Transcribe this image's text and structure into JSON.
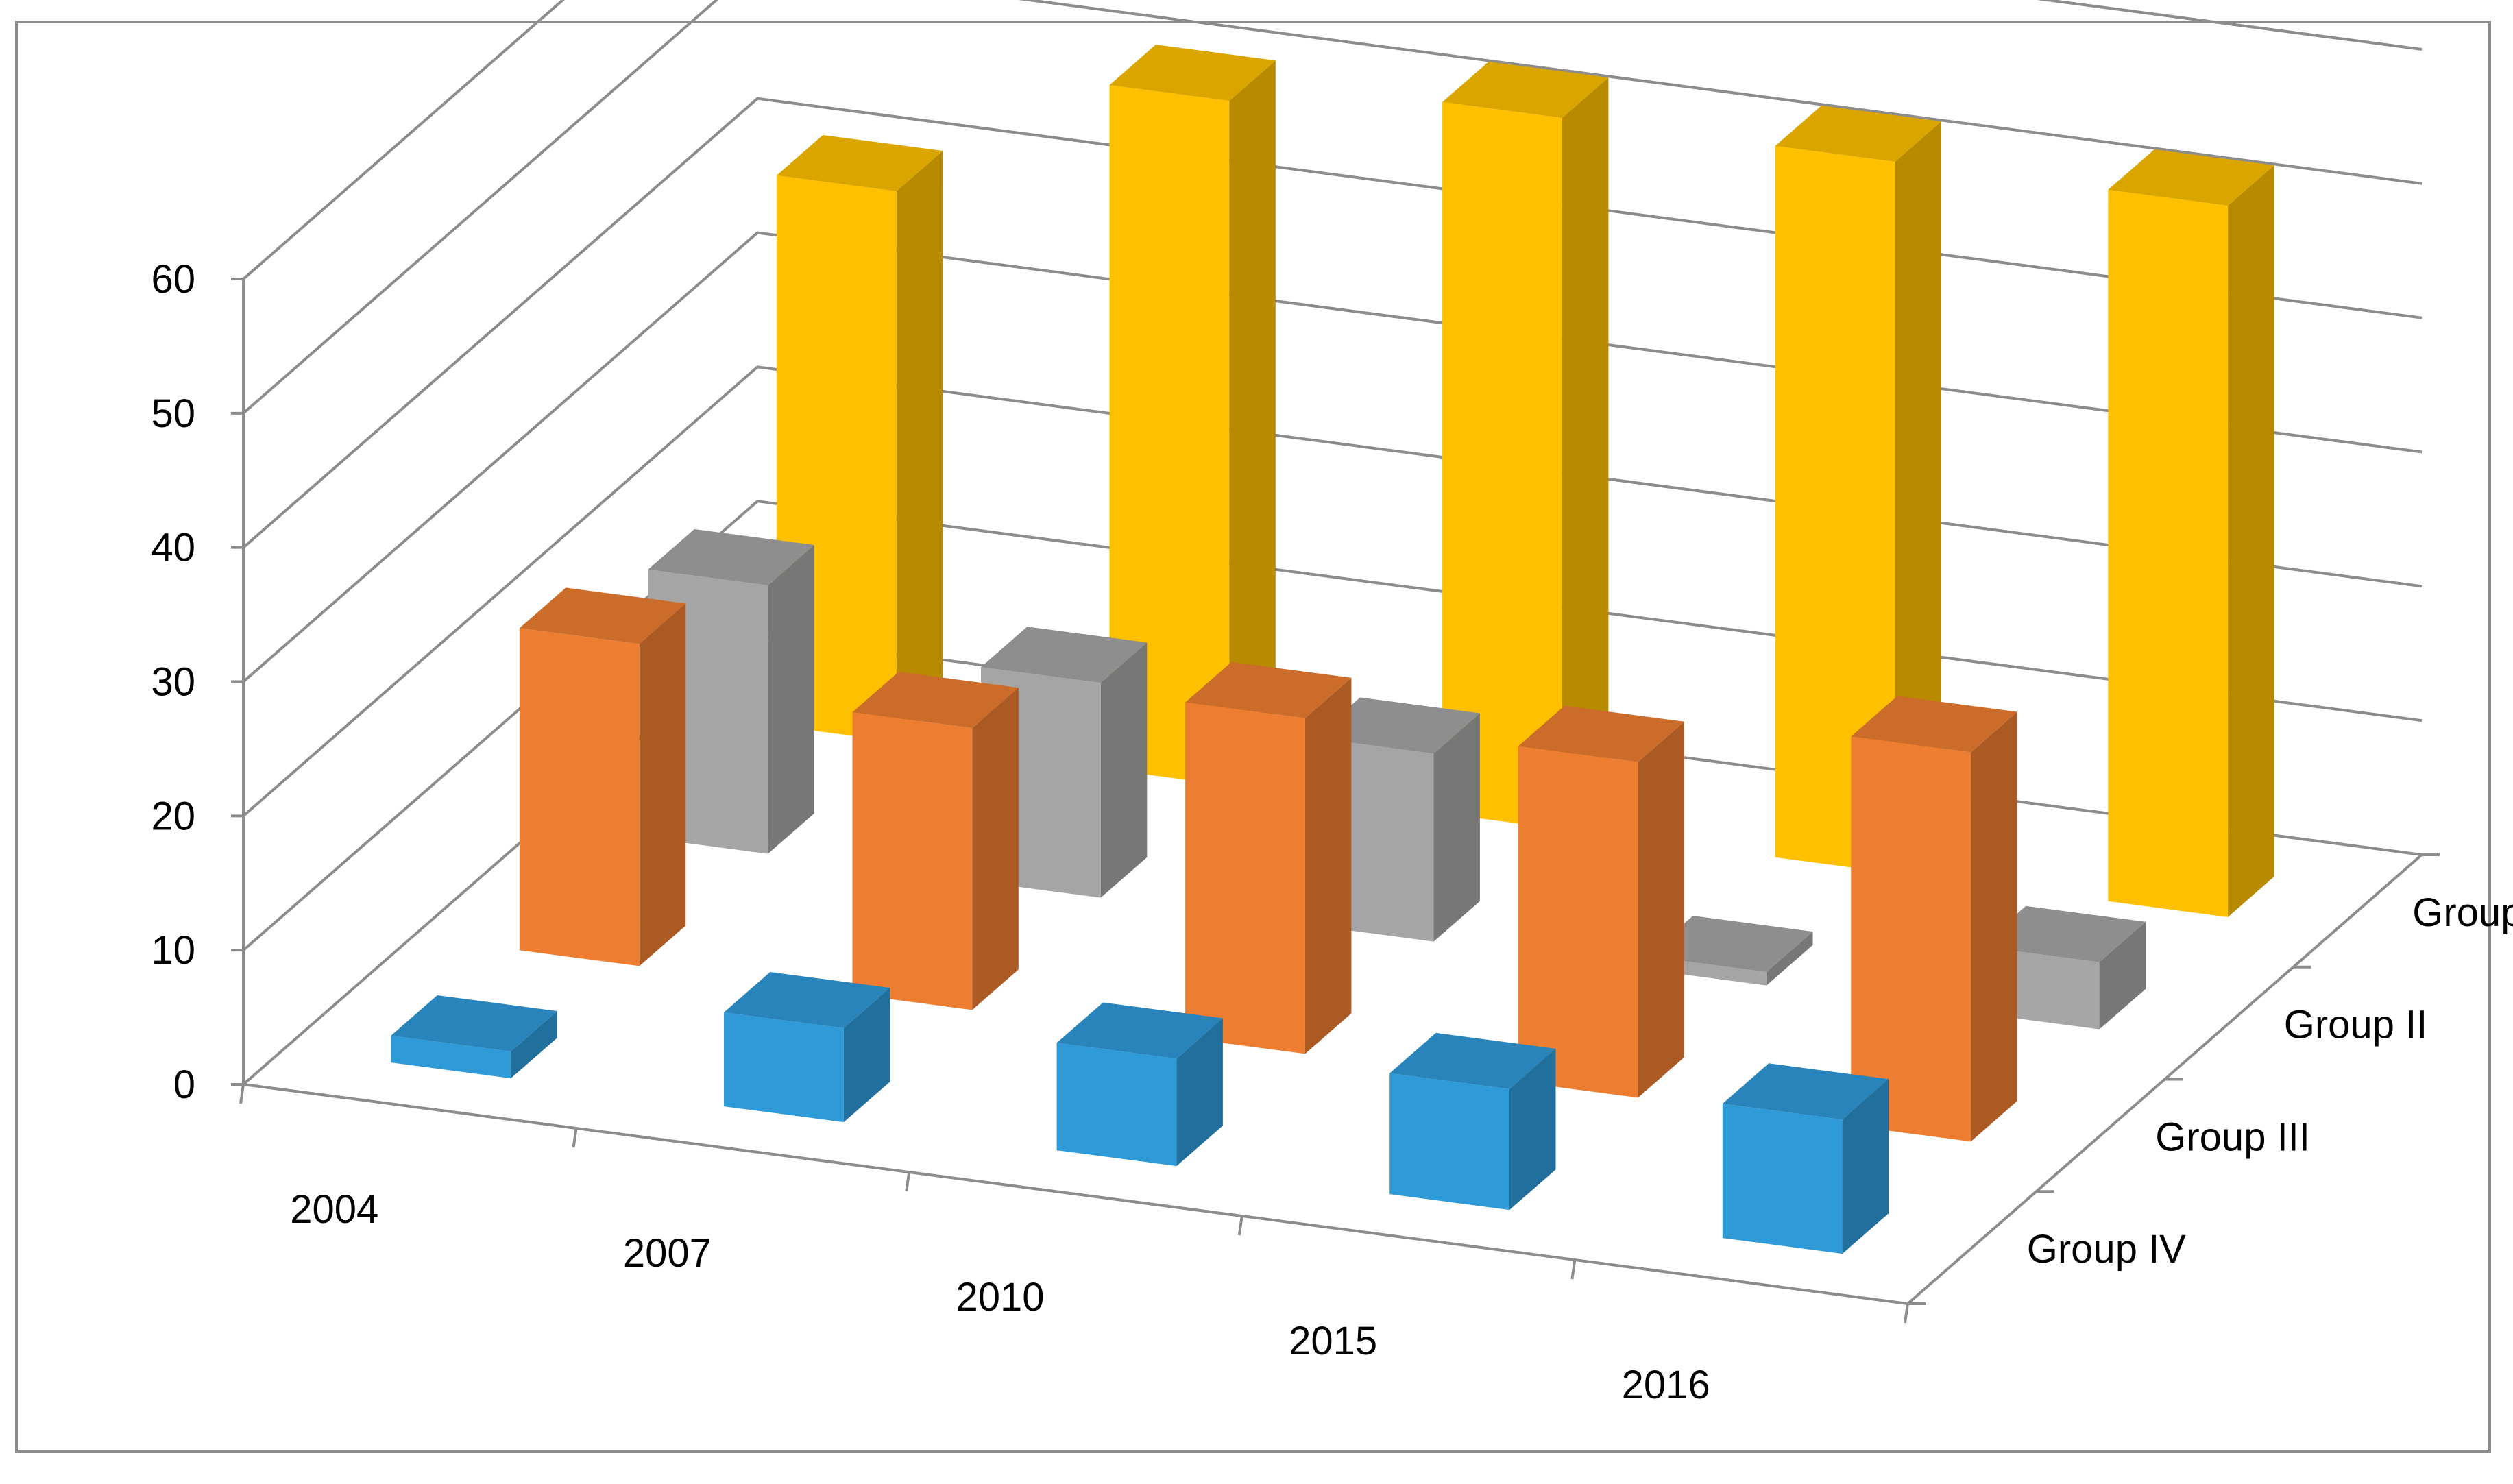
{
  "chart_data": {
    "type": "bar",
    "subtype": "3d-clustered-depth",
    "title": "",
    "xlabel": "",
    "ylabel": "",
    "categories": [
      "2004",
      "2007",
      "2010",
      "2015",
      "2016"
    ],
    "ylim": [
      0,
      60
    ],
    "yticks": [
      0,
      10,
      20,
      30,
      40,
      50,
      60
    ],
    "grid": true,
    "legend": "none",
    "series": [
      {
        "name": "Group I",
        "values": [
          41,
          51,
          53,
          53,
          53
        ],
        "color": "#FFC000"
      },
      {
        "name": "Group II",
        "values": [
          20,
          16,
          14,
          1,
          5
        ],
        "color": "#A5A5A5"
      },
      {
        "name": "Group III",
        "values": [
          24,
          21,
          25,
          25,
          29
        ],
        "color": "#ED7D31"
      },
      {
        "name": "Group IV",
        "values": [
          2,
          7,
          8,
          9,
          10
        ],
        "color": "#2E9AD8"
      }
    ]
  }
}
